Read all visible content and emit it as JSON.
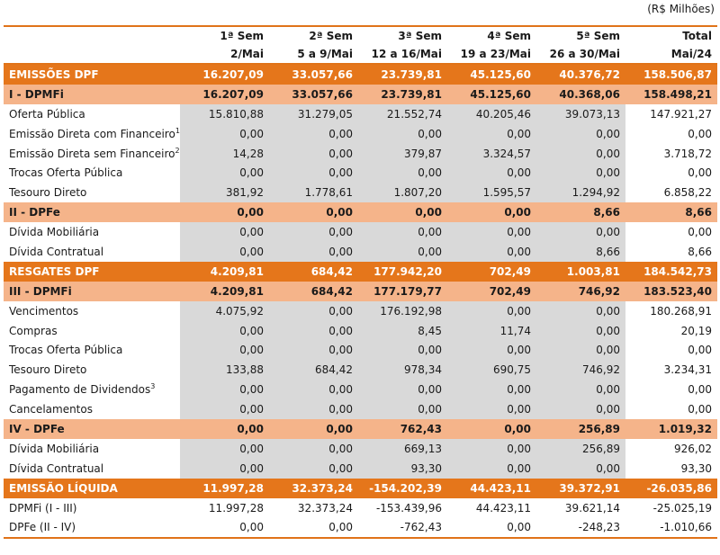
{
  "unit_label": "(R$ Milhões)",
  "columns": [
    {
      "line1": "1ª Sem",
      "line2": "2/Mai"
    },
    {
      "line1": "2ª Sem",
      "line2": "5 a 9/Mai"
    },
    {
      "line1": "3ª Sem",
      "line2": "12 a 16/Mai"
    },
    {
      "line1": "4ª Sem",
      "line2": "19 a 23/Mai"
    },
    {
      "line1": "5ª Sem",
      "line2": "26 a 30/Mai"
    },
    {
      "line1": "Total",
      "line2": "Mai/24"
    }
  ],
  "rows": [
    {
      "type": "major",
      "label": "EMISSÕES DPF",
      "values": [
        "16.207,09",
        "33.057,66",
        "23.739,81",
        "45.125,60",
        "40.376,72",
        "158.506,87"
      ]
    },
    {
      "type": "sub",
      "label": "I - DPMFi",
      "values": [
        "16.207,09",
        "33.057,66",
        "23.739,81",
        "45.125,60",
        "40.368,06",
        "158.498,21"
      ]
    },
    {
      "type": "data",
      "label": "Oferta Pública",
      "values": [
        "15.810,88",
        "31.279,05",
        "21.552,74",
        "40.205,46",
        "39.073,13",
        "147.921,27"
      ]
    },
    {
      "type": "data",
      "label": "Emissão Direta com Financeiro",
      "sup": "1",
      "values": [
        "0,00",
        "0,00",
        "0,00",
        "0,00",
        "0,00",
        "0,00"
      ]
    },
    {
      "type": "data",
      "label": "Emissão Direta sem Financeiro",
      "sup": "2",
      "values": [
        "14,28",
        "0,00",
        "379,87",
        "3.324,57",
        "0,00",
        "3.718,72"
      ]
    },
    {
      "type": "data",
      "label": "Trocas Oferta Pública",
      "values": [
        "0,00",
        "0,00",
        "0,00",
        "0,00",
        "0,00",
        "0,00"
      ]
    },
    {
      "type": "data",
      "label": "Tesouro Direto",
      "values": [
        "381,92",
        "1.778,61",
        "1.807,20",
        "1.595,57",
        "1.294,92",
        "6.858,22"
      ]
    },
    {
      "type": "sub",
      "label": "II - DPFe",
      "values": [
        "0,00",
        "0,00",
        "0,00",
        "0,00",
        "8,66",
        "8,66"
      ]
    },
    {
      "type": "data",
      "label": "Dívida Mobiliária",
      "values": [
        "0,00",
        "0,00",
        "0,00",
        "0,00",
        "0,00",
        "0,00"
      ]
    },
    {
      "type": "data",
      "label": "Dívida Contratual",
      "values": [
        "0,00",
        "0,00",
        "0,00",
        "0,00",
        "8,66",
        "8,66"
      ]
    },
    {
      "type": "major",
      "label": "RESGATES DPF",
      "values": [
        "4.209,81",
        "684,42",
        "177.942,20",
        "702,49",
        "1.003,81",
        "184.542,73"
      ]
    },
    {
      "type": "sub",
      "label": "III - DPMFi",
      "values": [
        "4.209,81",
        "684,42",
        "177.179,77",
        "702,49",
        "746,92",
        "183.523,40"
      ]
    },
    {
      "type": "data",
      "label": "Vencimentos",
      "values": [
        "4.075,92",
        "0,00",
        "176.192,98",
        "0,00",
        "0,00",
        "180.268,91"
      ]
    },
    {
      "type": "data",
      "label": "Compras",
      "values": [
        "0,00",
        "0,00",
        "8,45",
        "11,74",
        "0,00",
        "20,19"
      ]
    },
    {
      "type": "data",
      "label": "Trocas Oferta Pública",
      "values": [
        "0,00",
        "0,00",
        "0,00",
        "0,00",
        "0,00",
        "0,00"
      ]
    },
    {
      "type": "data",
      "label": "Tesouro Direto",
      "values": [
        "133,88",
        "684,42",
        "978,34",
        "690,75",
        "746,92",
        "3.234,31"
      ]
    },
    {
      "type": "data",
      "label": "Pagamento de Dividendos",
      "sup": "3",
      "values": [
        "0,00",
        "0,00",
        "0,00",
        "0,00",
        "0,00",
        "0,00"
      ]
    },
    {
      "type": "data",
      "label": "Cancelamentos",
      "values": [
        "0,00",
        "0,00",
        "0,00",
        "0,00",
        "0,00",
        "0,00"
      ]
    },
    {
      "type": "sub",
      "label": "IV - DPFe",
      "values": [
        "0,00",
        "0,00",
        "762,43",
        "0,00",
        "256,89",
        "1.019,32"
      ]
    },
    {
      "type": "data",
      "label": "Dívida Mobiliária",
      "values": [
        "0,00",
        "0,00",
        "669,13",
        "0,00",
        "256,89",
        "926,02"
      ]
    },
    {
      "type": "data",
      "label": "Dívida Contratual",
      "values": [
        "0,00",
        "0,00",
        "93,30",
        "0,00",
        "0,00",
        "93,30"
      ]
    },
    {
      "type": "major",
      "label": "EMISSÃO LÍQUIDA",
      "values": [
        "11.997,28",
        "32.373,24",
        "-154.202,39",
        "44.423,11",
        "39.372,91",
        "-26.035,86"
      ]
    },
    {
      "type": "data",
      "label": "DPMFi  (I - III)",
      "noshade": true,
      "values": [
        "11.997,28",
        "32.373,24",
        "-153.439,96",
        "44.423,11",
        "39.621,14",
        "-25.025,19"
      ]
    },
    {
      "type": "data",
      "label": "DPFe  (II - IV)",
      "noshade": true,
      "last": true,
      "values": [
        "0,00",
        "0,00",
        "-762,43",
        "0,00",
        "-248,23",
        "-1.010,66"
      ]
    }
  ]
}
